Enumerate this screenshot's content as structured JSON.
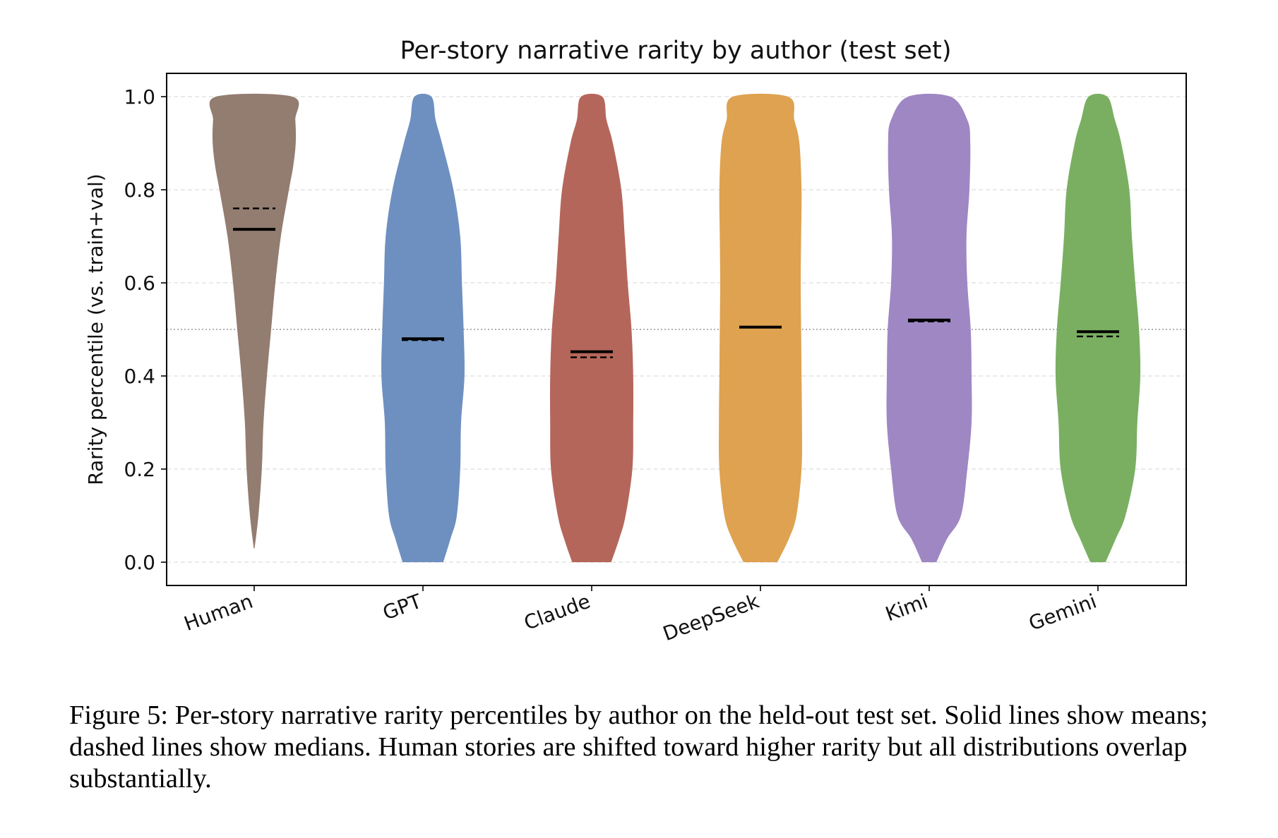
{
  "chart_data": {
    "type": "violin",
    "title": "Per-story narrative rarity by author (test set)",
    "xlabel": "",
    "ylabel": "Rarity percentile (vs. train+val)",
    "ylim": [
      -0.05,
      1.05
    ],
    "yticks": [
      0.0,
      0.2,
      0.4,
      0.6,
      0.8,
      1.0
    ],
    "ytick_labels": [
      "0.0",
      "0.2",
      "0.4",
      "0.6",
      "0.8",
      "1.0"
    ],
    "reference_line": 0.5,
    "grid": true,
    "categories": [
      "Human",
      "GPT",
      "Claude",
      "DeepSeek",
      "Kimi",
      "Gemini"
    ],
    "series": [
      {
        "category": "Human",
        "color": "#937c70",
        "mean": 0.715,
        "median": 0.76,
        "min": 0.03,
        "max": 1.0,
        "density": [
          [
            0.03,
            0.01
          ],
          [
            0.1,
            0.1
          ],
          [
            0.2,
            0.18
          ],
          [
            0.3,
            0.22
          ],
          [
            0.4,
            0.3
          ],
          [
            0.5,
            0.4
          ],
          [
            0.6,
            0.5
          ],
          [
            0.7,
            0.63
          ],
          [
            0.8,
            0.82
          ],
          [
            0.85,
            0.92
          ],
          [
            0.9,
            0.98
          ],
          [
            0.95,
            0.97
          ],
          [
            1.0,
            0.9
          ]
        ]
      },
      {
        "category": "GPT",
        "color": "#6e90c0",
        "mean": 0.48,
        "median": 0.477,
        "min": 0.0,
        "max": 1.0,
        "density": [
          [
            0.0,
            0.48
          ],
          [
            0.05,
            0.65
          ],
          [
            0.1,
            0.8
          ],
          [
            0.2,
            0.88
          ],
          [
            0.3,
            0.9
          ],
          [
            0.4,
            0.98
          ],
          [
            0.5,
            0.96
          ],
          [
            0.6,
            0.92
          ],
          [
            0.7,
            0.88
          ],
          [
            0.8,
            0.72
          ],
          [
            0.9,
            0.45
          ],
          [
            0.95,
            0.3
          ],
          [
            1.0,
            0.2
          ]
        ]
      },
      {
        "category": "Claude",
        "color": "#b5665a",
        "mean": 0.452,
        "median": 0.44,
        "min": 0.0,
        "max": 1.0,
        "density": [
          [
            0.0,
            0.46
          ],
          [
            0.05,
            0.65
          ],
          [
            0.1,
            0.8
          ],
          [
            0.2,
            0.96
          ],
          [
            0.3,
            0.98
          ],
          [
            0.4,
            0.98
          ],
          [
            0.5,
            0.94
          ],
          [
            0.6,
            0.85
          ],
          [
            0.7,
            0.78
          ],
          [
            0.8,
            0.7
          ],
          [
            0.9,
            0.5
          ],
          [
            0.95,
            0.35
          ],
          [
            1.0,
            0.25
          ]
        ]
      },
      {
        "category": "DeepSeek",
        "color": "#dea250",
        "mean": 0.505,
        "median": 0.505,
        "min": 0.0,
        "max": 1.0,
        "density": [
          [
            0.0,
            0.4
          ],
          [
            0.05,
            0.67
          ],
          [
            0.1,
            0.85
          ],
          [
            0.2,
            0.97
          ],
          [
            0.3,
            0.98
          ],
          [
            0.4,
            0.97
          ],
          [
            0.5,
            0.96
          ],
          [
            0.6,
            0.95
          ],
          [
            0.7,
            0.96
          ],
          [
            0.8,
            0.97
          ],
          [
            0.9,
            0.92
          ],
          [
            0.95,
            0.8
          ],
          [
            1.0,
            0.65
          ]
        ]
      },
      {
        "category": "Kimi",
        "color": "#9f87c4",
        "mean": 0.52,
        "median": 0.517,
        "min": 0.0,
        "max": 1.0,
        "density": [
          [
            0.0,
            0.17
          ],
          [
            0.05,
            0.42
          ],
          [
            0.1,
            0.75
          ],
          [
            0.2,
            0.9
          ],
          [
            0.3,
            1.0
          ],
          [
            0.4,
            1.0
          ],
          [
            0.5,
            0.98
          ],
          [
            0.6,
            0.9
          ],
          [
            0.7,
            0.88
          ],
          [
            0.8,
            0.95
          ],
          [
            0.9,
            0.97
          ],
          [
            0.95,
            0.9
          ],
          [
            1.0,
            0.5
          ]
        ]
      },
      {
        "category": "Gemini",
        "color": "#7aaf62",
        "mean": 0.495,
        "median": 0.485,
        "min": 0.0,
        "max": 1.0,
        "density": [
          [
            0.0,
            0.18
          ],
          [
            0.05,
            0.42
          ],
          [
            0.1,
            0.65
          ],
          [
            0.2,
            0.88
          ],
          [
            0.3,
            0.93
          ],
          [
            0.4,
            1.0
          ],
          [
            0.5,
            0.97
          ],
          [
            0.6,
            0.88
          ],
          [
            0.7,
            0.8
          ],
          [
            0.8,
            0.74
          ],
          [
            0.9,
            0.55
          ],
          [
            0.95,
            0.4
          ],
          [
            1.0,
            0.22
          ]
        ]
      }
    ],
    "annotations": {
      "mean_style": "solid",
      "median_style": "dashed"
    }
  },
  "caption": "Figure 5: Per-story narrative rarity percentiles by author on the held-out test set. Solid lines show means; dashed lines show medians. Human stories are shifted toward higher rarity but all distributions overlap substantially."
}
